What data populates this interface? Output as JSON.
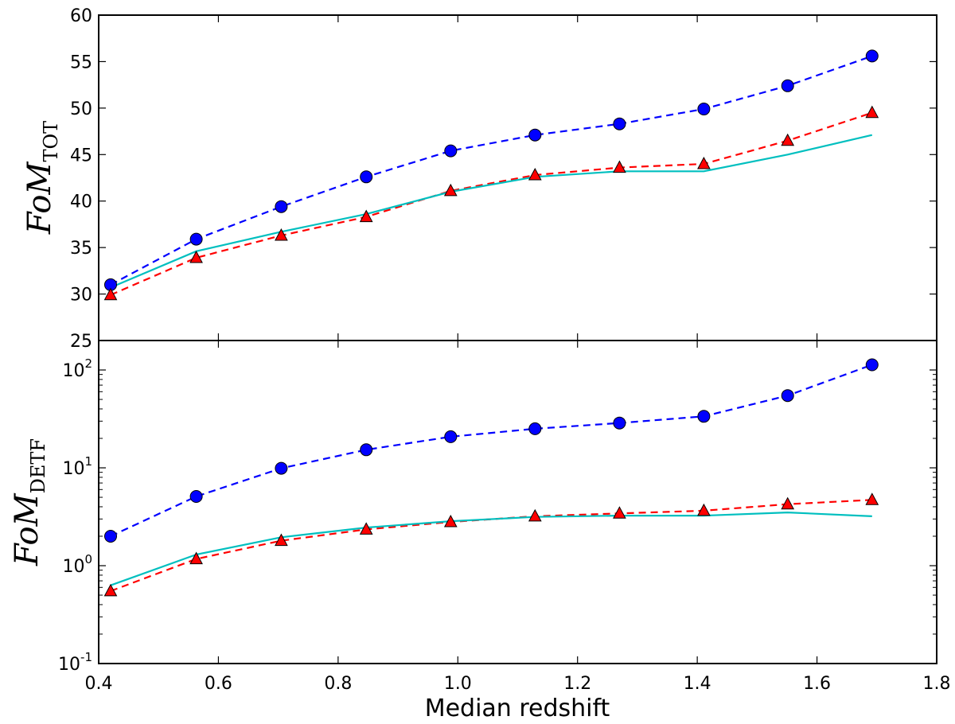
{
  "chart_data": [
    {
      "type": "line",
      "panel": "top",
      "yscale": "linear",
      "ylabel": {
        "base": "FoM",
        "sub": "TOT"
      },
      "xlabel": "",
      "xlim": [
        0.4,
        1.8
      ],
      "ylim": [
        25,
        60
      ],
      "yticks": [
        25,
        30,
        35,
        40,
        45,
        50,
        55,
        60
      ],
      "ytick_labels": [
        "25",
        "30",
        "35",
        "40",
        "45",
        "50",
        "55",
        "60"
      ],
      "x": [
        0.42,
        0.563,
        0.705,
        0.847,
        0.988,
        1.129,
        1.27,
        1.411,
        1.551,
        1.692
      ],
      "series": [
        {
          "name": "blue circles",
          "color": "#0000ff",
          "line": "dashed",
          "marker": "circle",
          "values": [
            31.0,
            35.9,
            39.4,
            42.6,
            45.4,
            47.1,
            48.3,
            49.9,
            52.4,
            55.6
          ]
        },
        {
          "name": "red triangles",
          "color": "#ff0000",
          "line": "dashed",
          "marker": "triangle",
          "values": [
            29.9,
            33.9,
            36.3,
            38.3,
            41.1,
            42.8,
            43.6,
            44.0,
            46.5,
            49.5
          ]
        },
        {
          "name": "cyan line",
          "color": "#00bfbf",
          "line": "solid",
          "marker": "none",
          "values": [
            30.7,
            34.6,
            36.7,
            38.6,
            41.0,
            42.6,
            43.2,
            43.2,
            45.0,
            47.1
          ]
        }
      ]
    },
    {
      "type": "line",
      "panel": "bottom",
      "yscale": "log",
      "ylabel": {
        "base": "FoM",
        "sub": "DETF"
      },
      "xlabel": "Median redshift",
      "xlim": [
        0.4,
        1.8
      ],
      "ylim": [
        0.1,
        200
      ],
      "yticks": [
        0.1,
        1,
        10,
        100
      ],
      "ytick_labels": [
        {
          "base": "10",
          "exp": "-1"
        },
        {
          "base": "10",
          "exp": "0"
        },
        {
          "base": "10",
          "exp": "1"
        },
        {
          "base": "10",
          "exp": "2"
        }
      ],
      "xticks": [
        0.4,
        0.6,
        0.8,
        1.0,
        1.2,
        1.4,
        1.6,
        1.8
      ],
      "xtick_labels": [
        "0.4",
        "0.6",
        "0.8",
        "1.0",
        "1.2",
        "1.4",
        "1.6",
        "1.8"
      ],
      "x": [
        0.42,
        0.563,
        0.705,
        0.847,
        0.988,
        1.129,
        1.27,
        1.411,
        1.551,
        1.692
      ],
      "series": [
        {
          "name": "blue circles",
          "color": "#0000ff",
          "line": "dashed",
          "marker": "circle",
          "values": [
            2.0,
            5.1,
            9.9,
            15.3,
            20.8,
            25.1,
            28.7,
            33.6,
            54.7,
            113
          ]
        },
        {
          "name": "red triangles",
          "color": "#ff0000",
          "line": "dashed",
          "marker": "triangle",
          "values": [
            0.55,
            1.17,
            1.8,
            2.35,
            2.8,
            3.2,
            3.42,
            3.65,
            4.25,
            4.7
          ]
        },
        {
          "name": "cyan line",
          "color": "#00bfbf",
          "line": "solid",
          "marker": "none",
          "values": [
            0.63,
            1.3,
            1.95,
            2.45,
            2.85,
            3.15,
            3.25,
            3.25,
            3.5,
            3.2
          ]
        }
      ]
    }
  ]
}
